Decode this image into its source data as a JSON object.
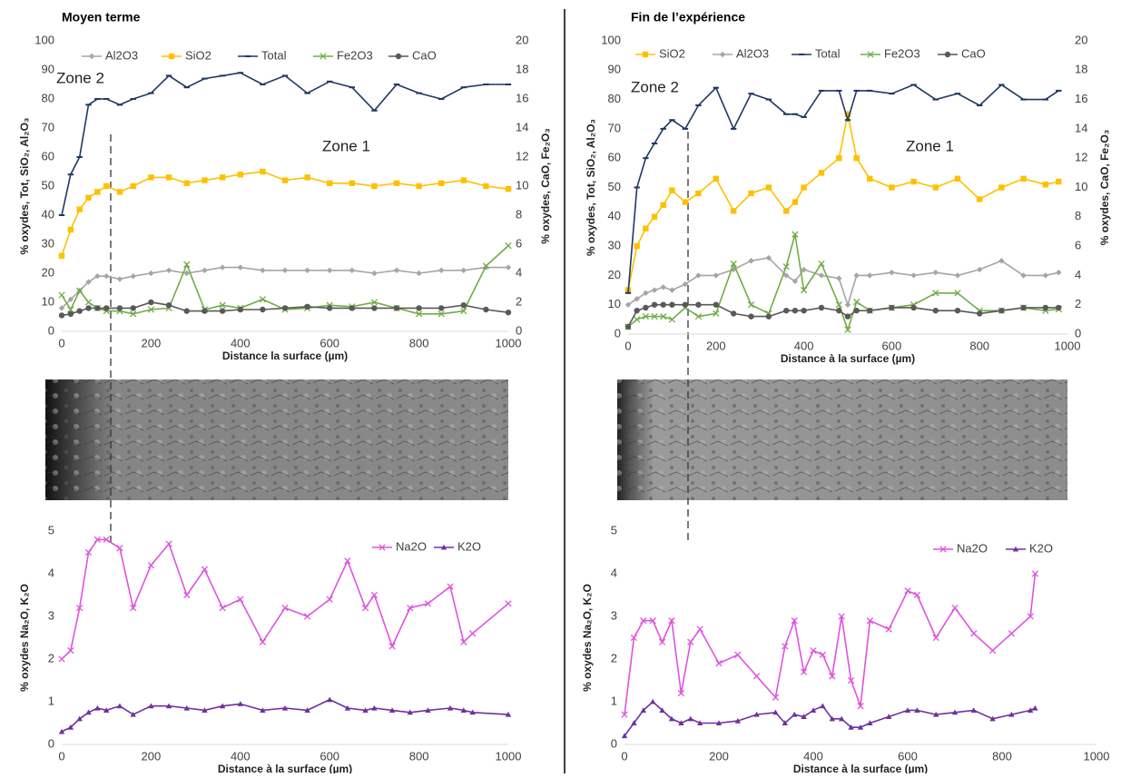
{
  "chart_data": [
    {
      "type": "line",
      "title": "Moyen terme",
      "x_label": "Distance la surface (µm)",
      "y_label": "% oxydes, Tot, SiO₂, Al₂O₃",
      "y2_label": "% oxydes, CaO, Fe₂O₃",
      "annotations": [
        "Zone 2",
        "Zone 1"
      ],
      "xlim": [
        0,
        1000
      ],
      "xticks": [
        0,
        200,
        400,
        600,
        800,
        1000
      ],
      "ylim": [
        0,
        100
      ],
      "yticks": [
        0,
        10,
        20,
        30,
        40,
        50,
        60,
        70,
        80,
        90,
        100
      ],
      "y2lim": [
        0,
        20
      ],
      "y2ticks": [
        0,
        2,
        4,
        6,
        8,
        10,
        12,
        14,
        16,
        18,
        20
      ],
      "grid": false,
      "x": [
        0,
        20,
        40,
        60,
        80,
        100,
        130,
        160,
        200,
        240,
        280,
        320,
        360,
        400,
        450,
        500,
        550,
        600,
        650,
        700,
        750,
        800,
        850,
        900,
        950,
        1000
      ],
      "series": [
        {
          "name": "Al2O3",
          "color": "#a5a5a5",
          "marker": "diamond",
          "values": [
            8,
            11,
            14,
            17,
            19,
            19,
            18,
            19,
            20,
            21,
            20,
            21,
            22,
            22,
            21,
            21,
            21,
            21,
            21,
            20,
            21,
            20,
            21,
            21,
            22,
            22
          ]
        },
        {
          "name": "SiO2",
          "color": "#ffc000",
          "marker": "square",
          "values": [
            26,
            35,
            42,
            46,
            48,
            50,
            48,
            50,
            53,
            53,
            51,
            52,
            53,
            54,
            55,
            52,
            53,
            51,
            51,
            50,
            51,
            50,
            51,
            52,
            50,
            49
          ]
        },
        {
          "name": "Total",
          "color": "#1f3864",
          "marker": "dash",
          "values": [
            40,
            54,
            60,
            78,
            80,
            80,
            78,
            80,
            82,
            88,
            84,
            87,
            88,
            89,
            85,
            88,
            82,
            86,
            84,
            76,
            85,
            82,
            80,
            84,
            85,
            85
          ]
        },
        {
          "name": "Fe2O3",
          "color": "#70ad47",
          "marker": "x",
          "axis": "y2",
          "values": [
            2.5,
            1.5,
            2.8,
            2,
            1.6,
            1.4,
            1.4,
            1.2,
            1.5,
            1.6,
            4.6,
            1.5,
            1.8,
            1.6,
            2.2,
            1.5,
            1.6,
            1.8,
            1.7,
            2,
            1.6,
            1.2,
            1.2,
            1.4,
            4.5,
            5.9
          ]
        },
        {
          "name": "CaO",
          "color": "#595959",
          "marker": "circle",
          "axis": "y2",
          "values": [
            1.1,
            1.2,
            1.4,
            1.6,
            1.6,
            1.6,
            1.6,
            1.6,
            2,
            1.8,
            1.4,
            1.4,
            1.4,
            1.5,
            1.5,
            1.6,
            1.7,
            1.6,
            1.6,
            1.6,
            1.6,
            1.6,
            1.6,
            1.8,
            1.5,
            1.3
          ]
        }
      ]
    },
    {
      "type": "line",
      "title": "Fin de l’expérience",
      "x_label": "Distance à la surface (µm)",
      "y_label": "% oxydes, Tot, SiO₂, Al₂O₃",
      "y2_label": "% oxydes, CaO, Fe₂O₃",
      "annotations": [
        "Zone 2",
        "Zone 1"
      ],
      "xlim": [
        0,
        1000
      ],
      "xticks": [
        0,
        200,
        400,
        600,
        800,
        1000
      ],
      "ylim": [
        0,
        100
      ],
      "yticks": [
        0,
        10,
        20,
        30,
        40,
        50,
        60,
        70,
        80,
        90,
        100
      ],
      "y2lim": [
        0,
        20
      ],
      "y2ticks": [
        0,
        2,
        4,
        6,
        8,
        10,
        12,
        14,
        16,
        18,
        20
      ],
      "grid": false,
      "x": [
        0,
        20,
        40,
        60,
        80,
        100,
        130,
        160,
        200,
        240,
        280,
        320,
        360,
        380,
        400,
        440,
        480,
        500,
        520,
        550,
        600,
        650,
        700,
        750,
        800,
        850,
        900,
        950,
        980
      ],
      "series": [
        {
          "name": "SiO2",
          "color": "#ffc000",
          "marker": "square",
          "values": [
            15,
            30,
            36,
            40,
            44,
            49,
            45,
            48,
            53,
            42,
            48,
            50,
            42,
            45,
            50,
            55,
            60,
            75,
            60,
            53,
            50,
            52,
            50,
            53,
            46,
            50,
            53,
            51,
            52
          ]
        },
        {
          "name": "Al2O3",
          "color": "#a5a5a5",
          "marker": "diamond",
          "values": [
            10,
            12,
            14,
            15,
            16,
            15,
            17,
            20,
            20,
            22,
            25,
            26,
            20,
            18,
            22,
            20,
            19,
            10,
            20,
            20,
            21,
            20,
            21,
            20,
            22,
            25,
            20,
            20,
            21
          ]
        },
        {
          "name": "Total",
          "color": "#1f3864",
          "marker": "dash",
          "values": [
            14,
            50,
            60,
            65,
            70,
            73,
            70,
            78,
            84,
            70,
            82,
            80,
            75,
            75,
            74,
            83,
            83,
            73,
            83,
            83,
            82,
            85,
            80,
            82,
            78,
            85,
            80,
            80,
            83
          ]
        },
        {
          "name": "Fe2O3",
          "color": "#70ad47",
          "marker": "x",
          "axis": "y2",
          "values": [
            0.5,
            1,
            1.2,
            1.2,
            1.2,
            1.0,
            1.8,
            1.2,
            1.4,
            4.8,
            2,
            1.4,
            4.6,
            6.8,
            3,
            4.8,
            2,
            0.3,
            2.2,
            1.6,
            1.8,
            2,
            2.8,
            2.8,
            1.6,
            1.6,
            1.8,
            1.6,
            1.7
          ]
        },
        {
          "name": "CaO",
          "color": "#595959",
          "marker": "circle",
          "axis": "y2",
          "values": [
            0.5,
            1.6,
            1.8,
            2,
            2,
            2,
            2,
            2,
            2,
            1.4,
            1.2,
            1.2,
            1.6,
            1.6,
            1.6,
            1.8,
            1.6,
            1.2,
            1.6,
            1.6,
            1.8,
            1.8,
            1.6,
            1.6,
            1.4,
            1.6,
            1.8,
            1.8,
            1.8
          ]
        }
      ]
    },
    {
      "type": "line",
      "x_label": "Distance à la surface (µm)",
      "y_label": "% oxydes Na₂O, K₂O",
      "xlim": [
        0,
        1000
      ],
      "xticks": [
        0,
        200,
        400,
        600,
        800,
        1000
      ],
      "ylim": [
        0,
        5
      ],
      "yticks": [
        0,
        1,
        2,
        3,
        4,
        5
      ],
      "grid": false,
      "x": [
        0,
        20,
        40,
        60,
        80,
        100,
        130,
        160,
        200,
        240,
        280,
        320,
        360,
        400,
        450,
        500,
        550,
        600,
        640,
        680,
        700,
        740,
        780,
        820,
        870,
        900,
        920,
        1000
      ],
      "series": [
        {
          "name": "Na2O",
          "color": "#e052e0",
          "marker": "x",
          "values": [
            2,
            2.2,
            3.2,
            4.5,
            4.8,
            4.8,
            4.6,
            3.2,
            4.2,
            4.7,
            3.5,
            4.1,
            3.2,
            3.4,
            2.4,
            3.2,
            3,
            3.4,
            4.3,
            3.2,
            3.5,
            2.3,
            3.2,
            3.3,
            3.7,
            2.4,
            2.6,
            3.3
          ]
        },
        {
          "name": "K2O",
          "color": "#7030a0",
          "marker": "triangle",
          "values": [
            0.3,
            0.4,
            0.6,
            0.75,
            0.85,
            0.8,
            0.9,
            0.7,
            0.9,
            0.9,
            0.85,
            0.8,
            0.9,
            0.95,
            0.8,
            0.85,
            0.8,
            1.05,
            0.85,
            0.8,
            0.85,
            0.8,
            0.75,
            0.8,
            0.85,
            0.8,
            0.75,
            0.7
          ]
        }
      ]
    },
    {
      "type": "line",
      "x_label": "Distance à la surface (µm)",
      "y_label": "% oxydes Na₂O, K₂O",
      "xlim": [
        0,
        1000
      ],
      "xticks": [
        0,
        200,
        400,
        600,
        800,
        1000
      ],
      "ylim": [
        0,
        5
      ],
      "yticks": [
        0,
        1,
        2,
        3,
        4,
        5
      ],
      "grid": false,
      "x": [
        0,
        20,
        40,
        60,
        80,
        100,
        120,
        140,
        160,
        200,
        240,
        280,
        320,
        340,
        360,
        380,
        400,
        420,
        440,
        460,
        480,
        500,
        520,
        560,
        600,
        620,
        660,
        700,
        740,
        780,
        820,
        860,
        870
      ],
      "series": [
        {
          "name": "Na2O",
          "color": "#e052e0",
          "marker": "x",
          "values": [
            0.7,
            2.5,
            2.9,
            2.9,
            2.4,
            2.9,
            1.2,
            2.4,
            2.7,
            1.9,
            2.1,
            1.6,
            1.1,
            2.3,
            2.9,
            1.7,
            2.2,
            2.1,
            1.6,
            3.0,
            1.5,
            0.9,
            2.9,
            2.7,
            3.6,
            3.5,
            2.5,
            3.2,
            2.6,
            2.2,
            2.6,
            3.0,
            4.0
          ]
        },
        {
          "name": "K2O",
          "color": "#7030a0",
          "marker": "triangle",
          "values": [
            0.2,
            0.5,
            0.8,
            1.0,
            0.8,
            0.6,
            0.5,
            0.6,
            0.5,
            0.5,
            0.55,
            0.7,
            0.75,
            0.5,
            0.7,
            0.65,
            0.8,
            0.9,
            0.6,
            0.6,
            0.4,
            0.4,
            0.5,
            0.65,
            0.8,
            0.8,
            0.7,
            0.75,
            0.8,
            0.6,
            0.7,
            0.8,
            0.85
          ]
        }
      ]
    }
  ]
}
